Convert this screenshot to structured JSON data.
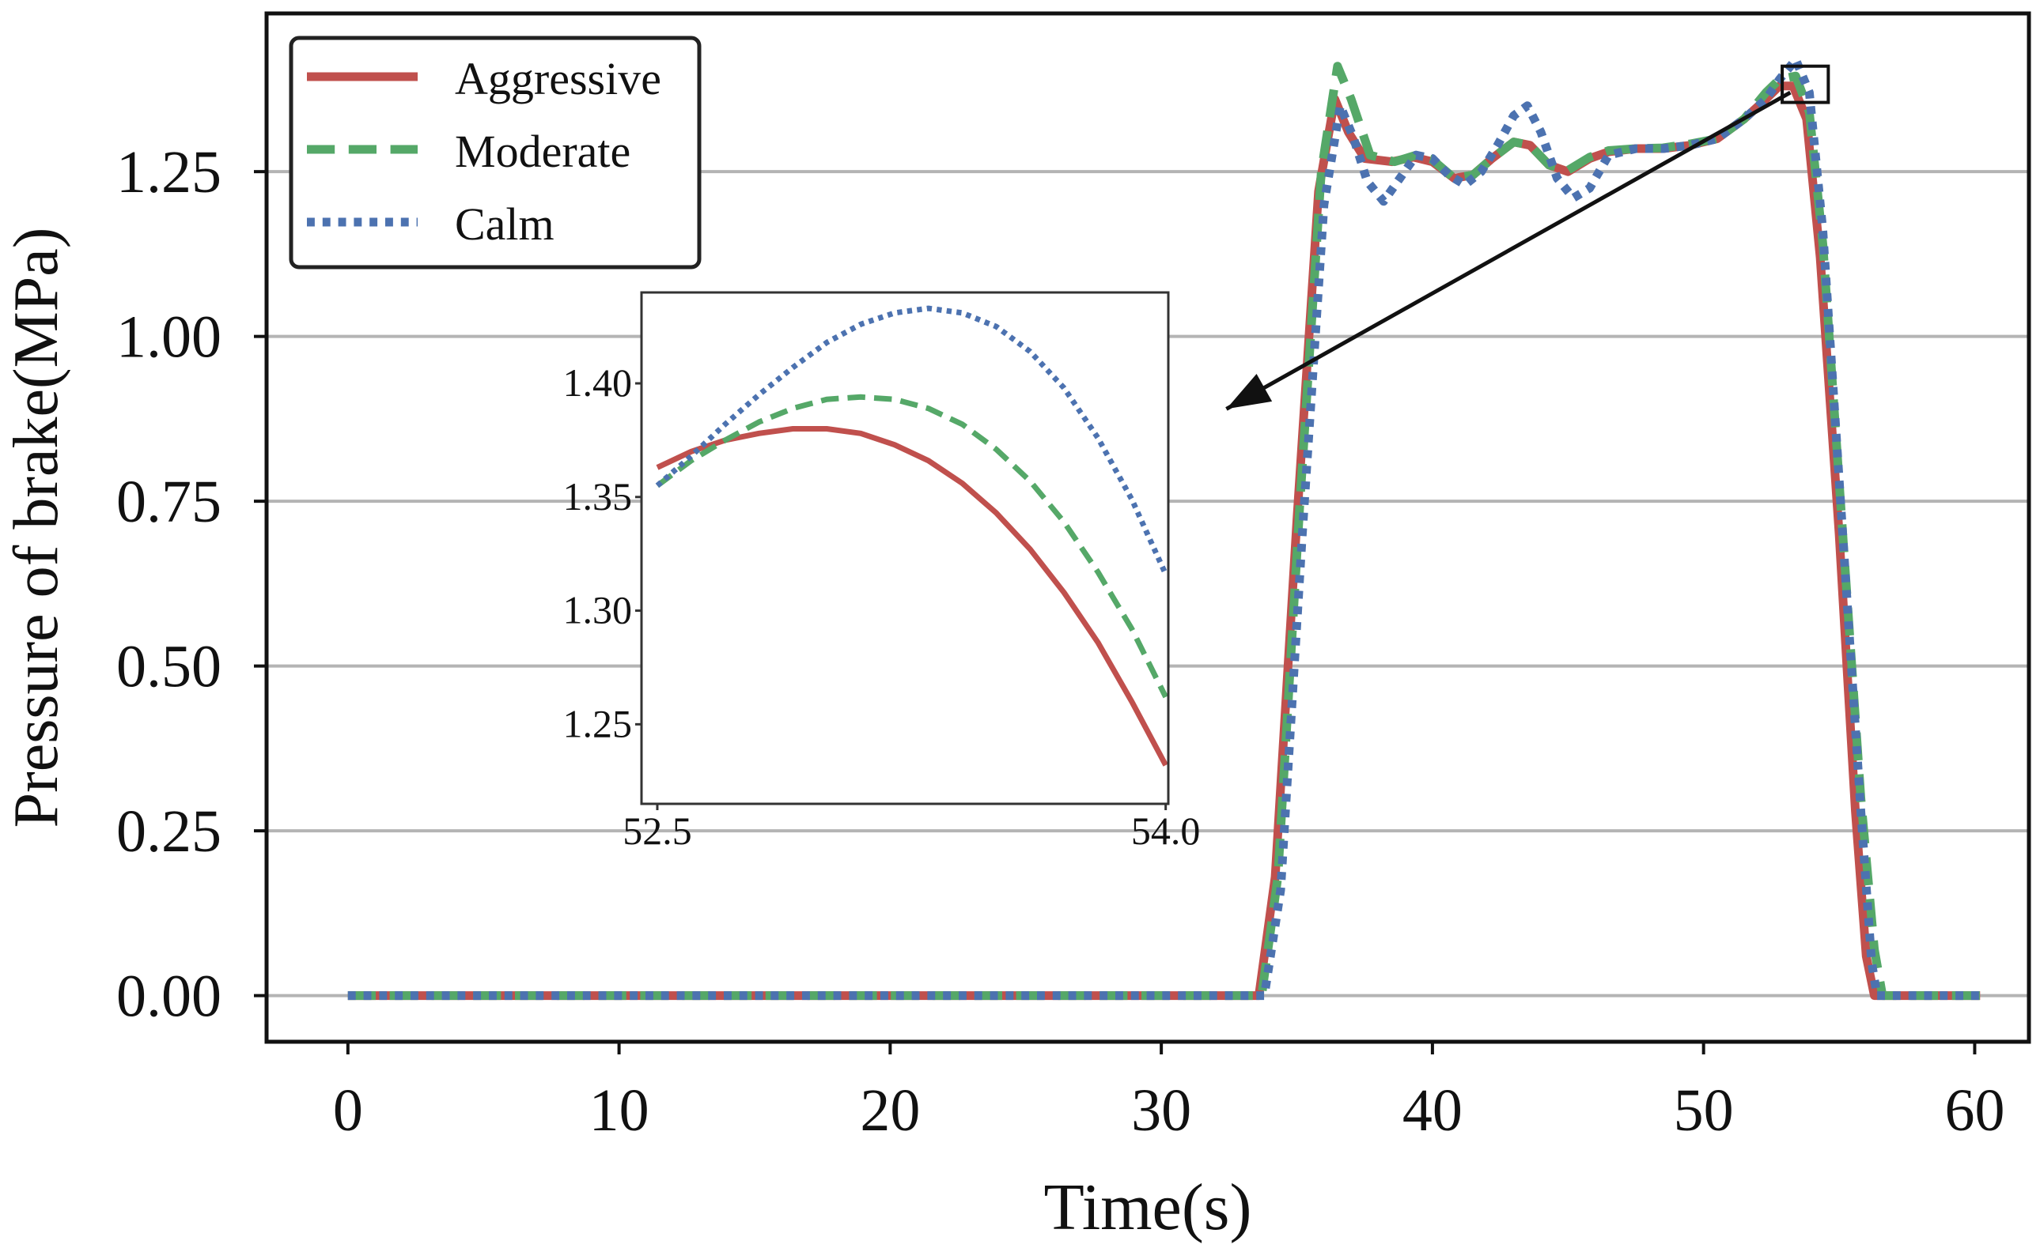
{
  "chart_data": [
    {
      "type": "line",
      "title": "",
      "xlabel": "Time(s)",
      "ylabel": "Pressure of brake(MPa)",
      "xlim": [
        -3,
        62
      ],
      "ylim": [
        -0.07,
        1.49
      ],
      "xticks": [
        0,
        10,
        20,
        30,
        40,
        50,
        60
      ],
      "xtick_labels": [
        "0",
        "10",
        "20",
        "30",
        "40",
        "50",
        "60"
      ],
      "yticks": [
        0.0,
        0.25,
        0.5,
        0.75,
        1.0,
        1.25
      ],
      "ytick_labels": [
        "0.00",
        "0.25",
        "0.50",
        "0.75",
        "1.00",
        "1.25"
      ],
      "grid": "horizontal",
      "legend": "top-left",
      "series": [
        {
          "name": "Aggressive",
          "color": "#c0504d",
          "style": "solid",
          "x": [
            0,
            33.6,
            34.2,
            35.0,
            35.8,
            36.4,
            36.9,
            37.5,
            38.5,
            39.3,
            40.0,
            40.8,
            41.5,
            42.2,
            43.0,
            43.6,
            44.3,
            45.0,
            45.8,
            46.5,
            47.5,
            48.5,
            49.5,
            50.5,
            51.5,
            52.3,
            52.8,
            53.3,
            53.8,
            54.3,
            55.0,
            55.6,
            56.0,
            56.3,
            60.2
          ],
          "y": [
            0,
            0,
            0.18,
            0.72,
            1.22,
            1.36,
            1.31,
            1.27,
            1.265,
            1.272,
            1.265,
            1.24,
            1.245,
            1.27,
            1.295,
            1.29,
            1.26,
            1.25,
            1.27,
            1.28,
            1.285,
            1.285,
            1.29,
            1.3,
            1.33,
            1.36,
            1.38,
            1.38,
            1.33,
            1.12,
            0.7,
            0.28,
            0.06,
            0,
            0
          ]
        },
        {
          "name": "Moderate",
          "color": "#55a868",
          "style": "dashed",
          "x": [
            0,
            33.7,
            34.3,
            35.1,
            35.9,
            36.5,
            37.0,
            37.7,
            38.6,
            39.4,
            40.0,
            40.8,
            41.5,
            42.2,
            43.0,
            43.6,
            44.3,
            45.0,
            45.8,
            46.5,
            47.5,
            48.5,
            49.5,
            50.5,
            51.5,
            52.3,
            52.8,
            53.4,
            53.9,
            54.4,
            55.1,
            55.8,
            56.3,
            56.6,
            60.2
          ],
          "y": [
            0,
            0,
            0.18,
            0.74,
            1.25,
            1.41,
            1.36,
            1.275,
            1.265,
            1.275,
            1.268,
            1.24,
            1.245,
            1.27,
            1.295,
            1.29,
            1.26,
            1.252,
            1.272,
            1.282,
            1.285,
            1.286,
            1.292,
            1.3,
            1.33,
            1.37,
            1.39,
            1.395,
            1.34,
            1.14,
            0.72,
            0.3,
            0.07,
            0,
            0
          ]
        },
        {
          "name": "Calm",
          "color": "#4c72b0",
          "style": "dotted",
          "x": [
            0,
            33.8,
            34.4,
            35.2,
            36.0,
            36.6,
            37.1,
            37.6,
            38.2,
            38.8,
            39.4,
            40.0,
            40.6,
            41.2,
            41.8,
            42.4,
            43.0,
            43.5,
            44.0,
            44.6,
            45.2,
            45.8,
            46.5,
            47.5,
            48.5,
            49.5,
            50.5,
            51.5,
            52.3,
            52.8,
            53.4,
            53.9,
            54.4,
            55.1,
            55.8,
            56.2,
            56.4,
            60.2
          ],
          "y": [
            0,
            0,
            0.16,
            0.7,
            1.2,
            1.35,
            1.3,
            1.235,
            1.205,
            1.24,
            1.275,
            1.27,
            1.245,
            1.23,
            1.25,
            1.29,
            1.335,
            1.35,
            1.31,
            1.24,
            1.21,
            1.225,
            1.275,
            1.285,
            1.285,
            1.29,
            1.3,
            1.33,
            1.36,
            1.39,
            1.42,
            1.37,
            1.16,
            0.72,
            0.28,
            0.05,
            0,
            0
          ]
        }
      ],
      "annotation": {
        "zoom_box": {
          "x": [
            52.9,
            54.6
          ],
          "y": [
            1.355,
            1.41
          ]
        },
        "arrow_from": [
          53.2,
          1.37
        ],
        "arrow_to": [
          32.4,
          0.89
        ]
      }
    },
    {
      "type": "line",
      "title": "",
      "xlabel": "",
      "ylabel": "",
      "xlim": [
        52.5,
        54.0
      ],
      "ylim": [
        1.215,
        1.44
      ],
      "xticks": [
        52.5,
        54.0
      ],
      "xtick_labels": [
        "52.5",
        "54.0"
      ],
      "yticks": [
        1.25,
        1.3,
        1.35,
        1.4
      ],
      "ytick_labels": [
        "1.25",
        "1.30",
        "1.35",
        "1.40"
      ],
      "grid": "none",
      "series": [
        {
          "name": "Aggressive",
          "color": "#c0504d",
          "style": "solid",
          "x": [
            52.5,
            52.6,
            52.7,
            52.8,
            52.9,
            53.0,
            53.1,
            53.2,
            53.3,
            53.4,
            53.5,
            53.6,
            53.7,
            53.8,
            53.9,
            54.0
          ],
          "y": [
            1.363,
            1.37,
            1.375,
            1.378,
            1.38,
            1.38,
            1.378,
            1.373,
            1.366,
            1.356,
            1.343,
            1.327,
            1.308,
            1.286,
            1.26,
            1.232
          ]
        },
        {
          "name": "Moderate",
          "color": "#55a868",
          "style": "dashed",
          "x": [
            52.5,
            52.6,
            52.7,
            52.8,
            52.9,
            53.0,
            53.1,
            53.2,
            53.3,
            53.4,
            53.5,
            53.6,
            53.7,
            53.8,
            53.9,
            54.0
          ],
          "y": [
            1.355,
            1.366,
            1.375,
            1.383,
            1.389,
            1.393,
            1.394,
            1.393,
            1.389,
            1.382,
            1.371,
            1.357,
            1.339,
            1.317,
            1.292,
            1.262
          ]
        },
        {
          "name": "Calm",
          "color": "#4c72b0",
          "style": "dotted",
          "x": [
            52.5,
            52.6,
            52.7,
            52.8,
            52.9,
            53.0,
            53.1,
            53.2,
            53.3,
            53.4,
            53.5,
            53.6,
            53.7,
            53.8,
            53.9,
            54.0
          ],
          "y": [
            1.355,
            1.368,
            1.382,
            1.395,
            1.407,
            1.418,
            1.426,
            1.431,
            1.433,
            1.431,
            1.425,
            1.414,
            1.398,
            1.376,
            1.349,
            1.316
          ]
        }
      ]
    }
  ]
}
